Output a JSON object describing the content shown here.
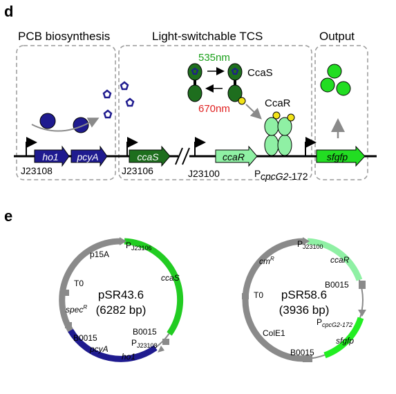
{
  "panel_d": {
    "letter": "d",
    "sections": {
      "pcb": "PCB biosynthesis",
      "tcs": "Light-switchable TCS",
      "output": "Output"
    },
    "light": {
      "green": "535nm",
      "red": "670nm"
    },
    "proteins": {
      "ccas": "CcaS",
      "ccar": "CcaR"
    },
    "genes": {
      "ho1": "ho1",
      "pcya": "pcyA",
      "ccas": "ccaS",
      "ccar": "ccaR",
      "sfgfp": "sfgfp"
    },
    "promoters": {
      "j23108": "J23108",
      "j23106": "J23106",
      "j23100": "J23100",
      "pcpcg2_p": "P",
      "pcpcg2_sub": "cpcG2",
      "pcpcg2_suffix": "-172"
    }
  },
  "panel_e": {
    "letter": "e",
    "plasmid1": {
      "name": "pSR43.6",
      "size": "(6282 bp)",
      "labels": {
        "p_prefix_1": "P",
        "p_sub_1": "J23106",
        "p15a": "p15A",
        "ccas": "ccaS",
        "t0": "T0",
        "spec": "spec",
        "spec_sup": "R",
        "b0015_left": "B0015",
        "b0015_right": "B0015",
        "p_prefix_2": "P",
        "p_sub_2": "J23108",
        "pcya": "pcyA",
        "ho1": "ho1"
      }
    },
    "plasmid2": {
      "name": "pSR58.6",
      "size": "(3936 bp)",
      "labels": {
        "p_prefix_1": "P",
        "p_sub_1": "J23100",
        "cm": "cm",
        "cm_sup": "R",
        "ccar": "ccaR",
        "t0": "T0",
        "b0015_right": "B0015",
        "p_prefix_2": "P",
        "p_sub_2": "cpcG2-172",
        "cole1": "ColE1",
        "sfgfp": "sfgfp",
        "b0015_bottom": "B0015"
      }
    }
  },
  "colors": {
    "navy": "#1f1b8f",
    "dark_green": "#1e6e1e",
    "bright_green": "#22dd22",
    "light_green": "#8ff0a4",
    "mid_green": "#2ba82b",
    "gray": "#8a8a8a",
    "yellow": "#f2e318",
    "red": "#e02020",
    "green_text": "#1aa01a"
  }
}
